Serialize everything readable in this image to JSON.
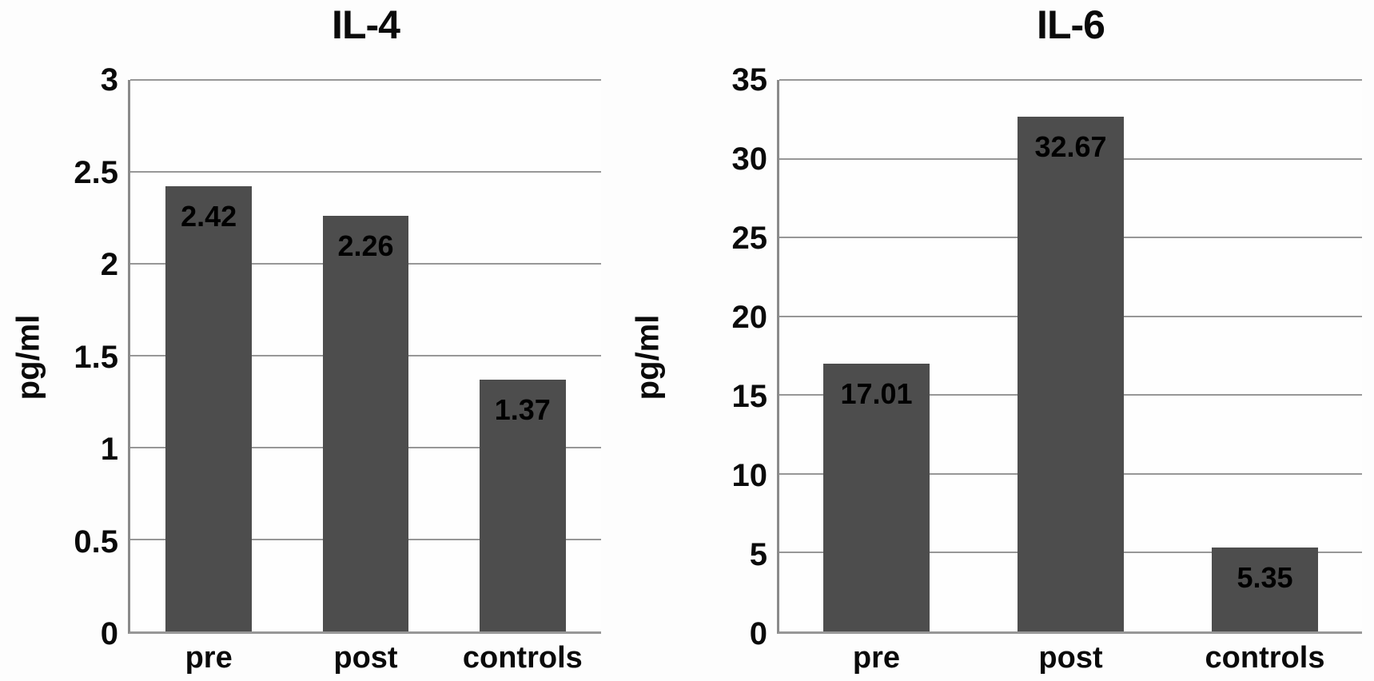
{
  "figure": {
    "background_color": "#fdfdfd",
    "bar_color": "#4d4d4d",
    "gridline_color": "#979797",
    "axis_color": "#8a8a8a",
    "label_color": "#000000"
  },
  "chart_data": [
    {
      "type": "bar",
      "title": "IL-4",
      "ylabel": "pg/ml",
      "xlabel": "",
      "categories": [
        "pre",
        "post",
        "controls"
      ],
      "values": [
        2.42,
        2.26,
        1.37
      ],
      "value_labels": [
        "2.42",
        "2.26",
        "1.37"
      ],
      "ylim": [
        0,
        3
      ],
      "ytick_values": [
        3,
        2.5,
        2,
        1.5,
        1,
        0.5,
        0
      ],
      "ytick_labels": [
        "3",
        "2.5",
        "2",
        "1.5",
        "1",
        "0.5",
        "0"
      ],
      "grid": true,
      "legend": false,
      "bar_label_position": "inside-top"
    },
    {
      "type": "bar",
      "title": "IL-6",
      "ylabel": "pg/ml",
      "xlabel": "",
      "categories": [
        "pre",
        "post",
        "controls"
      ],
      "values": [
        17.01,
        32.67,
        5.35
      ],
      "value_labels": [
        "17.01",
        "32.67",
        "5.35"
      ],
      "ylim": [
        0,
        35
      ],
      "ytick_values": [
        35,
        30,
        25,
        20,
        15,
        10,
        5,
        0
      ],
      "ytick_labels": [
        "35",
        "30",
        "25",
        "20",
        "15",
        "10",
        "5",
        "0"
      ],
      "grid": true,
      "legend": false,
      "bar_label_position": "inside-top"
    }
  ]
}
